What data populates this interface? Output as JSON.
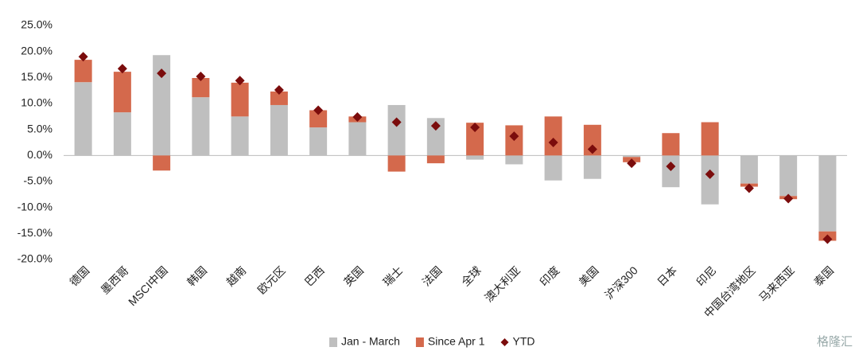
{
  "chart_data": {
    "type": "bar",
    "stacked": true,
    "categories": [
      "德国",
      "墨西哥",
      "MSCI中国",
      "韩国",
      "越南",
      "欧元区",
      "巴西",
      "英国",
      "瑞士",
      "法国",
      "全球",
      "澳大利亚",
      "印度",
      "美国",
      "沪深300",
      "日本",
      "印尼",
      "中国台湾地区",
      "马来西亚",
      "泰国"
    ],
    "series": [
      {
        "name": "Jan - March",
        "type": "bar",
        "color": "#bfbfbf",
        "values": [
          14.1,
          8.3,
          19.3,
          11.2,
          7.5,
          9.7,
          5.4,
          6.4,
          9.7,
          7.2,
          -0.8,
          -1.7,
          -4.8,
          -4.5,
          -0.3,
          -6.1,
          -9.4,
          -5.4,
          -7.8,
          -14.6
        ]
      },
      {
        "name": "Since Apr 1",
        "type": "bar",
        "color": "#d4694c",
        "values": [
          4.3,
          7.8,
          -2.9,
          3.7,
          6.5,
          2.6,
          3.3,
          1.1,
          -3.1,
          -1.5,
          6.3,
          5.8,
          7.5,
          5.9,
          -1.0,
          4.3,
          6.4,
          -0.6,
          -0.6,
          -1.8
        ]
      },
      {
        "name": "YTD",
        "type": "diamond",
        "color": "#7b0c0c",
        "values": [
          19.0,
          16.7,
          15.8,
          15.2,
          14.4,
          12.6,
          8.7,
          7.4,
          6.4,
          5.7,
          5.4,
          3.7,
          2.5,
          1.2,
          -1.5,
          -2.1,
          -3.6,
          -6.3,
          -8.3,
          -16.1
        ]
      }
    ],
    "ylim": [
      -20,
      25
    ],
    "yticks": [
      {
        "value": -20,
        "label": "-20.0%"
      },
      {
        "value": -15,
        "label": "-15.0%"
      },
      {
        "value": -10,
        "label": "-10.0%"
      },
      {
        "value": -5,
        "label": "-5.0%"
      },
      {
        "value": 0,
        "label": "0.0%"
      },
      {
        "value": 5,
        "label": "5.0%"
      },
      {
        "value": 10,
        "label": "10.0%"
      },
      {
        "value": 15,
        "label": "15.0%"
      },
      {
        "value": 20,
        "label": "20.0%"
      },
      {
        "value": 25,
        "label": "25.0%"
      }
    ],
    "grid": false,
    "legend": "bottom",
    "watermark": "格隆汇"
  }
}
